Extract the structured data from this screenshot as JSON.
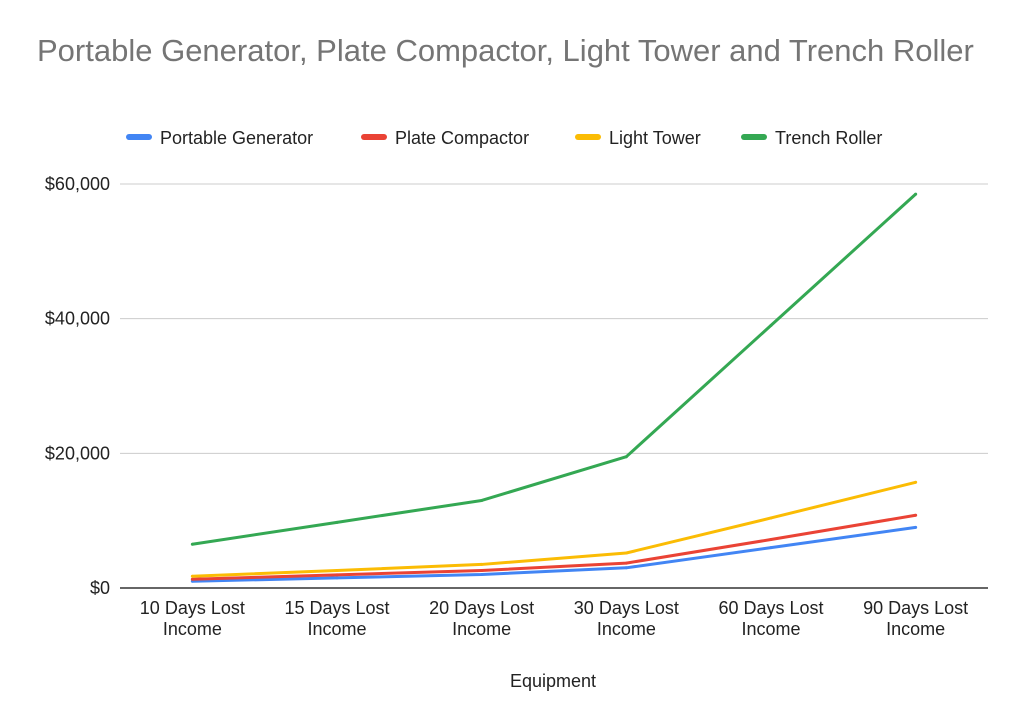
{
  "chart_data": {
    "type": "line",
    "title": "Portable Generator, Plate Compactor, Light Tower and Trench Roller",
    "xlabel": "Equipment",
    "ylabel": "",
    "categories": [
      [
        "10 Days Lost",
        "Income"
      ],
      [
        "15 Days Lost",
        "Income"
      ],
      [
        "20 Days Lost",
        "Income"
      ],
      [
        "30 Days Lost",
        "Income"
      ],
      [
        "60 Days Lost",
        "Income"
      ],
      [
        "90 Days Lost",
        "Income"
      ]
    ],
    "ylim": [
      0,
      60000
    ],
    "yticks": [
      0,
      20000,
      40000,
      60000
    ],
    "ytick_labels": [
      "$0",
      "$20,000",
      "$40,000",
      "$60,000"
    ],
    "grid": true,
    "legend_position": "top",
    "series": [
      {
        "name": "Portable Generator",
        "color": "#4285f4",
        "values": [
          1000,
          1500,
          2000,
          3000,
          6000,
          9000
        ]
      },
      {
        "name": "Plate Compactor",
        "color": "#ea4335",
        "values": [
          1300,
          1950,
          2600,
          3700,
          7200,
          10800
        ]
      },
      {
        "name": "Light Tower",
        "color": "#fbbc04",
        "values": [
          1750,
          2600,
          3500,
          5200,
          10400,
          15700
        ]
      },
      {
        "name": "Trench Roller",
        "color": "#34a853",
        "values": [
          6500,
          9750,
          13000,
          19500,
          39000,
          58500
        ]
      }
    ]
  }
}
